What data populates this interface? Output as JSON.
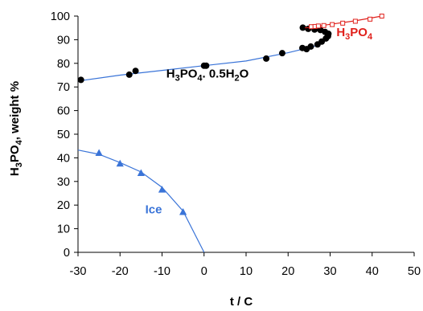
{
  "colors": {
    "ice": "#3a74d8",
    "h3po4": "#e0201b",
    "hemihydrate": "#3a74d8",
    "markers": "#000000"
  },
  "chart_data": {
    "type": "scatter",
    "title": "",
    "xlabel": "t / C",
    "ylabel": "H3PO4, weight %",
    "xlim": [
      -30,
      50
    ],
    "ylim": [
      0,
      100
    ],
    "xticks": [
      "-30",
      "-20",
      "-10",
      "0",
      "10",
      "20",
      "30",
      "40",
      "50"
    ],
    "yticks": [
      "0",
      "10",
      "20",
      "30",
      "40",
      "50",
      "60",
      "70",
      "80",
      "90",
      "100"
    ],
    "grid": false,
    "legend": "none",
    "annotations": [
      {
        "id": "ann_hemi",
        "text": "H3PO4. 0.5H2O",
        "color_key": "markers",
        "x": -9,
        "y": 74
      },
      {
        "id": "ann_ice",
        "text": "Ice",
        "color_key": "ice",
        "x": -14,
        "y": 16.5
      },
      {
        "id": "ann_h3po4",
        "text": "H3PO4",
        "color_key": "h3po4",
        "x": 31.5,
        "y": 91.5
      }
    ],
    "series": [
      {
        "id": "ice",
        "color_key": "ice",
        "marker": "triangle",
        "line": [
          [
            -30,
            43.3
          ],
          [
            -25,
            41.5
          ],
          [
            -20,
            38
          ],
          [
            -15,
            34
          ],
          [
            -10,
            27.5
          ],
          [
            -5,
            17.5
          ],
          [
            0,
            0
          ]
        ],
        "points": [
          [
            -25,
            42
          ],
          [
            -20,
            37.5
          ],
          [
            -15,
            33.5
          ],
          [
            -10,
            26.5
          ],
          [
            -5,
            17
          ]
        ]
      },
      {
        "id": "hemihydrate",
        "color_key": "hemihydrate",
        "marker": "circle",
        "line": [
          [
            -30,
            72.5
          ],
          [
            -20,
            75
          ],
          [
            -10,
            77
          ],
          [
            0,
            79
          ],
          [
            10,
            81
          ],
          [
            20,
            84.5
          ],
          [
            23.5,
            86
          ],
          [
            26,
            87
          ],
          [
            28,
            89
          ],
          [
            29.3,
            91.5
          ],
          [
            29,
            93
          ],
          [
            27.5,
            94
          ],
          [
            25.5,
            94.8
          ],
          [
            24,
            95
          ],
          [
            23.5,
            95.2
          ]
        ],
        "points": [
          [
            -29.3,
            73
          ],
          [
            -17.8,
            75.2
          ],
          [
            -16.3,
            76.8
          ],
          [
            0,
            79
          ],
          [
            0.5,
            79
          ],
          [
            14.8,
            82
          ],
          [
            18.6,
            84.3
          ],
          [
            23.4,
            86.5
          ],
          [
            24.4,
            86
          ],
          [
            25.4,
            87.1
          ],
          [
            27,
            88
          ],
          [
            28,
            89.2
          ],
          [
            29,
            90.5
          ],
          [
            29.5,
            91.5
          ],
          [
            29.6,
            92.5
          ],
          [
            28.8,
            93.3
          ],
          [
            27.7,
            94.1
          ],
          [
            26.3,
            94.3
          ],
          [
            24.8,
            94.6
          ],
          [
            23.5,
            95.1
          ]
        ]
      },
      {
        "id": "h3po4",
        "color_key": "h3po4",
        "marker": "square",
        "line": [
          [
            24,
            95
          ],
          [
            30,
            96.5
          ],
          [
            36,
            98
          ],
          [
            42.3,
            100
          ]
        ],
        "points": [
          [
            25.5,
            95.5
          ],
          [
            26.4,
            95.6
          ],
          [
            27.2,
            95.8
          ],
          [
            28.5,
            96
          ],
          [
            30.5,
            96.4
          ],
          [
            33,
            97
          ],
          [
            36,
            97.8
          ],
          [
            39.5,
            98.7
          ],
          [
            42.3,
            100
          ]
        ]
      }
    ]
  }
}
